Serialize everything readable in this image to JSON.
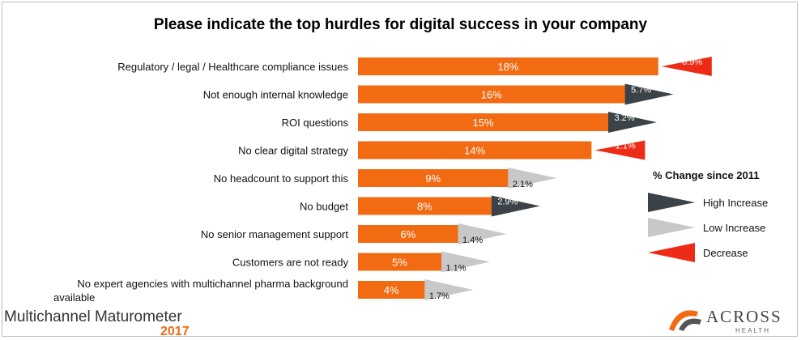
{
  "chart_data": {
    "type": "bar",
    "orientation": "horizontal",
    "title": "Please indicate the top hurdles for digital success in your company",
    "categories": [
      "Regulatory / legal / Healthcare compliance issues",
      "Not enough internal knowledge",
      "ROI questions",
      "No clear digital strategy",
      "No headcount to support this",
      "No budget",
      "No senior management support",
      "Customers are not ready",
      "No expert agencies with multichannel pharma background available"
    ],
    "category_lines": [
      [
        "Regulatory / legal / Healthcare compliance issues"
      ],
      [
        "Not enough internal knowledge"
      ],
      [
        "ROI questions"
      ],
      [
        "No clear digital strategy"
      ],
      [
        "No headcount to support this"
      ],
      [
        "No budget"
      ],
      [
        "No senior management support"
      ],
      [
        "Customers are not ready"
      ],
      [
        "No expert agencies with multichannel pharma background",
        "available"
      ]
    ],
    "values": [
      18,
      16,
      15,
      14,
      9,
      8,
      6,
      5,
      4
    ],
    "value_labels": [
      "18%",
      "16%",
      "15%",
      "14%",
      "9%",
      "8%",
      "6%",
      "5%",
      "4%"
    ],
    "change_since_2011": [
      -0.9,
      5.7,
      3.2,
      -1.1,
      2.1,
      2.9,
      1.4,
      1.1,
      1.7
    ],
    "change_labels": [
      "-0.9%",
      "5.7%",
      "3.2%",
      "-1.1%",
      "2.1%",
      "2.9%",
      "1.4%",
      "1.1%",
      "1.7%"
    ],
    "change_type": [
      "decrease",
      "high",
      "high",
      "decrease",
      "low",
      "high",
      "low",
      "low",
      "low"
    ],
    "xlim": [
      0,
      18
    ],
    "bar_color": "#f26a12",
    "legend": {
      "title": "% Change since 2011",
      "placement": "right",
      "items": [
        {
          "label": "High Increase",
          "color": "#3b4248"
        },
        {
          "label": "Low Increase",
          "color": "#c8c8c8"
        },
        {
          "label": "Decrease",
          "color": "#ee2b16"
        }
      ]
    }
  },
  "branding": {
    "left_text": "Multichannel Maturometer",
    "left_year": "2017",
    "right_name": "ACROSS",
    "right_sub": "HEALTH"
  }
}
